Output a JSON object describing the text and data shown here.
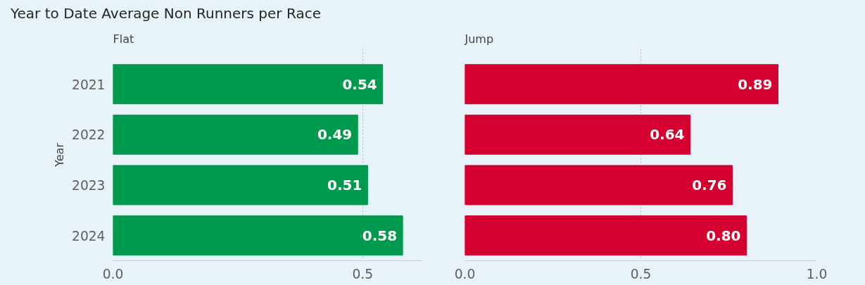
{
  "chart_data": [
    {
      "type": "bar",
      "orientation": "horizontal",
      "title": "Year to Date Average Non Runners per Race",
      "subtitle": "Flat",
      "ylabel": "Year",
      "categories": [
        "2021",
        "2022",
        "2023",
        "2024"
      ],
      "series": [
        {
          "color": "#009a4e",
          "values": [
            0.54,
            0.49,
            0.51,
            0.58
          ],
          "value_labels": [
            "0.54",
            "0.49",
            "0.51",
            "0.58"
          ]
        }
      ],
      "xlim": [
        0,
        0.62
      ],
      "xticks": [
        {
          "value": 0,
          "label": "0.0"
        },
        {
          "value": 0.5,
          "label": "0.5"
        }
      ],
      "grid": "x"
    },
    {
      "type": "bar",
      "orientation": "horizontal",
      "subtitle": "Jump",
      "categories": [
        "2021",
        "2022",
        "2023",
        "2024"
      ],
      "series": [
        {
          "color": "#d4002f",
          "values": [
            0.89,
            0.64,
            0.76,
            0.8
          ],
          "value_labels": [
            "0.89",
            "0.64",
            "0.76",
            "0.80"
          ]
        }
      ],
      "xlim": [
        0,
        1.0
      ],
      "xticks": [
        {
          "value": 0,
          "label": "0.0"
        },
        {
          "value": 0.5,
          "label": "0.5"
        },
        {
          "value": 1.0,
          "label": "1.0"
        }
      ],
      "grid": "x",
      "tick_labels": "x"
    }
  ]
}
